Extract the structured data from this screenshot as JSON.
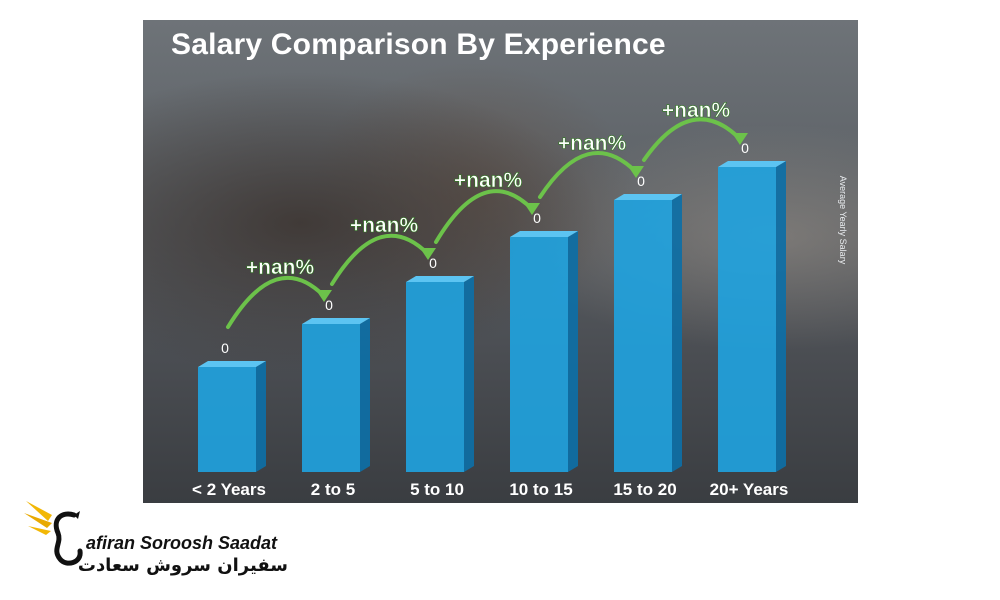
{
  "chart_data": {
    "type": "bar",
    "title": "Salary Comparison By Experience",
    "ylabel": "Average Yearly Salary",
    "xlabel": "",
    "categories": [
      "< 2 Years",
      "2 to 5",
      "5 to 10",
      "10 to 15",
      "15 to 20",
      "20+ Years"
    ],
    "values": [
      0,
      0,
      0,
      0,
      0,
      0
    ],
    "value_labels": [
      "0",
      "0",
      "0",
      "0",
      "0",
      "0"
    ],
    "growth_labels": [
      "+nan%",
      "+nan%",
      "+nan%",
      "+nan%",
      "+nan%"
    ],
    "colors": {
      "bar": "#1fa3e0",
      "bar_side": "#0d6fa6",
      "bar_top": "#5cc4f2",
      "arrow": "#6cc24a",
      "growth_text": "#ffffff"
    }
  },
  "brand": {
    "name": "afiran Soroosh Saadat",
    "name_fa": "سفیران سروش سعادت",
    "colors": {
      "wing": "#f2b705",
      "text": "#111111"
    }
  }
}
